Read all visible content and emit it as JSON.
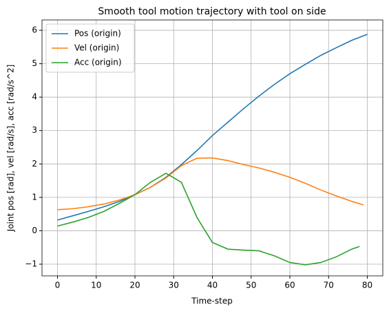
{
  "chart_data": {
    "type": "line",
    "title": "Smooth tool motion trajectory with tool on side",
    "xlabel": "Time-step",
    "ylabel": "Joint pos [rad], vel [rad/s], acc [rad/s^2]",
    "xlim": [
      -4,
      84
    ],
    "ylim": [
      -1.35,
      6.31
    ],
    "xticks": [
      0,
      10,
      20,
      30,
      40,
      50,
      60,
      70,
      80
    ],
    "yticks": [
      -1,
      0,
      1,
      2,
      3,
      4,
      5,
      6
    ],
    "grid": true,
    "legend": "upper-left",
    "series": [
      {
        "name": "Pos (origin)",
        "color": "#1f77b4",
        "x": [
          0,
          4,
          8,
          12,
          16,
          20,
          24,
          28,
          32,
          36,
          40,
          44,
          48,
          52,
          56,
          60,
          64,
          68,
          72,
          76,
          80
        ],
        "values": [
          0.32,
          0.45,
          0.58,
          0.72,
          0.88,
          1.08,
          1.3,
          1.6,
          1.98,
          2.4,
          2.85,
          3.25,
          3.65,
          4.03,
          4.38,
          4.7,
          4.98,
          5.25,
          5.48,
          5.7,
          5.88
        ]
      },
      {
        "name": "Vel (origin)",
        "color": "#ff7f0e",
        "x": [
          0,
          4,
          8,
          12,
          16,
          20,
          24,
          28,
          32,
          36,
          40,
          44,
          48,
          52,
          56,
          60,
          64,
          68,
          72,
          76,
          79
        ],
        "values": [
          0.63,
          0.66,
          0.72,
          0.8,
          0.92,
          1.08,
          1.3,
          1.58,
          1.95,
          2.17,
          2.18,
          2.1,
          1.98,
          1.88,
          1.75,
          1.6,
          1.42,
          1.22,
          1.04,
          0.88,
          0.77
        ]
      },
      {
        "name": "Acc (origin)",
        "color": "#2ca02c",
        "x": [
          0,
          4,
          8,
          12,
          16,
          20,
          24,
          28,
          32,
          36,
          40,
          44,
          48,
          52,
          56,
          60,
          64,
          68,
          72,
          76,
          78
        ],
        "values": [
          0.14,
          0.26,
          0.4,
          0.58,
          0.82,
          1.08,
          1.45,
          1.72,
          1.45,
          0.4,
          -0.35,
          -0.55,
          -0.58,
          -0.6,
          -0.75,
          -0.95,
          -1.02,
          -0.95,
          -0.78,
          -0.55,
          -0.47
        ]
      }
    ]
  }
}
